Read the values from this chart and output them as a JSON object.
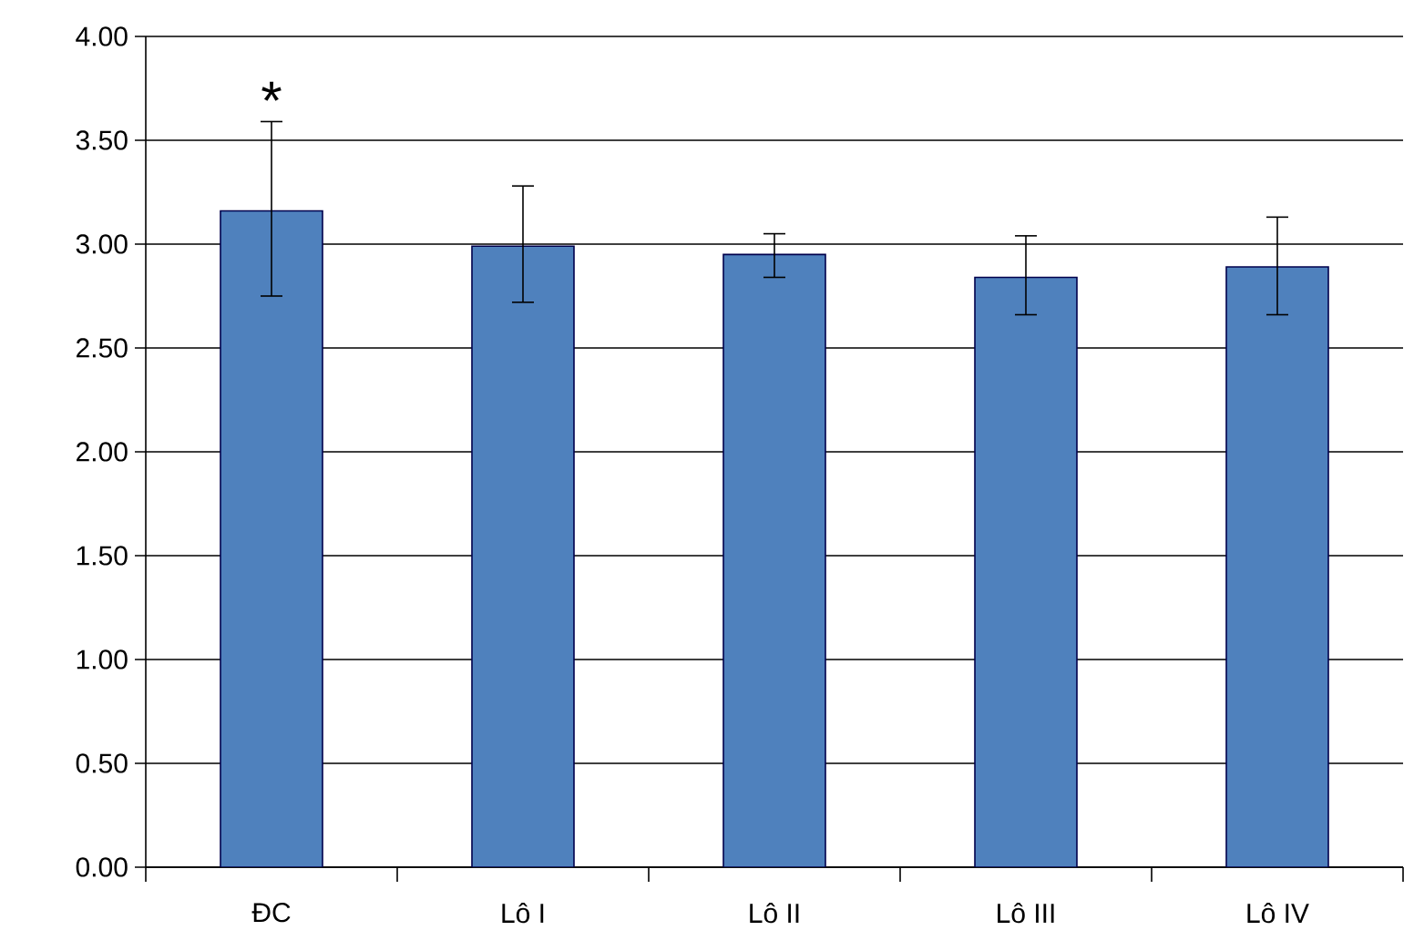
{
  "chart_data": {
    "type": "bar",
    "categories": [
      "ĐC",
      "Lô I",
      "Lô II",
      "Lô III",
      "Lô IV"
    ],
    "values": [
      3.16,
      2.99,
      2.95,
      2.84,
      2.89
    ],
    "errors": [
      [
        2.75,
        3.59
      ],
      [
        2.72,
        3.28
      ],
      [
        2.84,
        3.05
      ],
      [
        2.66,
        3.04
      ],
      [
        2.66,
        3.13
      ]
    ],
    "color": "#4f81bd",
    "ylim": [
      0,
      4
    ],
    "yticks": [
      {
        "value": 0,
        "label": "0.00"
      },
      {
        "value": 0.5,
        "label": "0.50"
      },
      {
        "value": 1,
        "label": "1.00"
      },
      {
        "value": 1.5,
        "label": "1.50"
      },
      {
        "value": 2,
        "label": "2.00"
      },
      {
        "value": 2.5,
        "label": "2.50"
      },
      {
        "value": 3,
        "label": "3.00"
      },
      {
        "value": 3.5,
        "label": "3.50"
      },
      {
        "value": 4,
        "label": "4.00"
      }
    ],
    "grid": "y",
    "annotations": [
      {
        "text": "*",
        "x": "ĐC",
        "y": 3.59
      }
    ]
  }
}
